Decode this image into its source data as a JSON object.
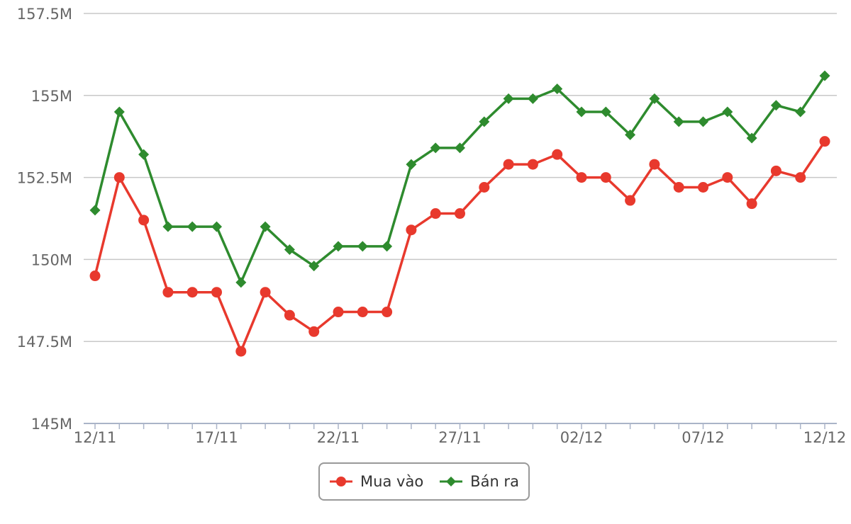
{
  "chart_data": {
    "type": "line",
    "x": [
      "12/11",
      "13/11",
      "14/11",
      "15/11",
      "16/11",
      "17/11",
      "18/11",
      "19/11",
      "20/11",
      "21/11",
      "22/11",
      "23/11",
      "24/11",
      "25/11",
      "26/11",
      "27/11",
      "28/11",
      "29/11",
      "30/11",
      "01/12",
      "02/12",
      "03/12",
      "04/12",
      "05/12",
      "06/12",
      "07/12",
      "08/12",
      "09/12",
      "10/12",
      "11/12",
      "12/12"
    ],
    "x_tick_labels": [
      "12/11",
      "17/11",
      "22/11",
      "27/11",
      "02/12",
      "07/12",
      "12/12"
    ],
    "y_tick_labels": [
      "145M",
      "147.5M",
      "150M",
      "152.5M",
      "155M",
      "157.5M"
    ],
    "ylim": [
      145,
      157.5
    ],
    "series": [
      {
        "name": "Mua vào",
        "color": "#e8392d",
        "marker": "circle",
        "values": [
          149.5,
          152.5,
          151.2,
          149.0,
          149.0,
          149.0,
          147.2,
          149.0,
          148.3,
          147.8,
          148.4,
          148.4,
          148.4,
          150.9,
          151.4,
          151.4,
          152.2,
          152.9,
          152.9,
          153.2,
          152.5,
          152.5,
          151.8,
          152.9,
          152.2,
          152.2,
          152.5,
          151.7,
          152.7,
          152.5,
          153.6
        ]
      },
      {
        "name": "Bán ra",
        "color": "#2e8b2e",
        "marker": "diamond",
        "values": [
          151.5,
          154.5,
          153.2,
          151.0,
          151.0,
          151.0,
          149.3,
          151.0,
          150.3,
          149.8,
          150.4,
          150.4,
          150.4,
          152.9,
          153.4,
          153.4,
          154.2,
          154.9,
          154.9,
          155.2,
          154.5,
          154.5,
          153.8,
          154.9,
          154.2,
          154.2,
          154.5,
          153.7,
          154.7,
          154.5,
          155.6
        ]
      }
    ],
    "grid": true,
    "legend_position": "bottom-center"
  }
}
